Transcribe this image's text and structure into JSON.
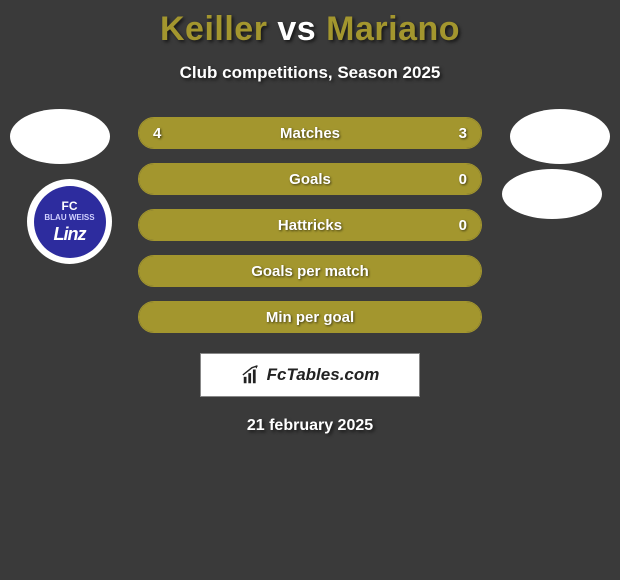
{
  "title": {
    "player1": "Keiller",
    "vs": " vs ",
    "player2": "Mariano",
    "color_player": "#a3962e",
    "color_vs": "#ffffff"
  },
  "subtitle": "Club competitions, Season 2025",
  "club_left": {
    "line1": "FC",
    "line2": "BLAU WEISS",
    "line3": "Linz"
  },
  "bars": [
    {
      "label": "Matches",
      "left": "4",
      "right": "3",
      "fill_left_pct": 57,
      "fill_right_pct": 43
    },
    {
      "label": "Goals",
      "left": "",
      "right": "0",
      "fill_left_pct": 100,
      "fill_right_pct": 0
    },
    {
      "label": "Hattricks",
      "left": "",
      "right": "0",
      "fill_left_pct": 100,
      "fill_right_pct": 0
    },
    {
      "label": "Goals per match",
      "left": "",
      "right": "",
      "fill_left_pct": 100,
      "fill_right_pct": 0
    },
    {
      "label": "Min per goal",
      "left": "",
      "right": "",
      "fill_left_pct": 100,
      "fill_right_pct": 0
    }
  ],
  "brand": "FcTables.com",
  "date": "21 february 2025",
  "colors": {
    "accent": "#a3962e",
    "background": "#3a3a3a",
    "text": "#ffffff",
    "box_bg": "#ffffff"
  }
}
